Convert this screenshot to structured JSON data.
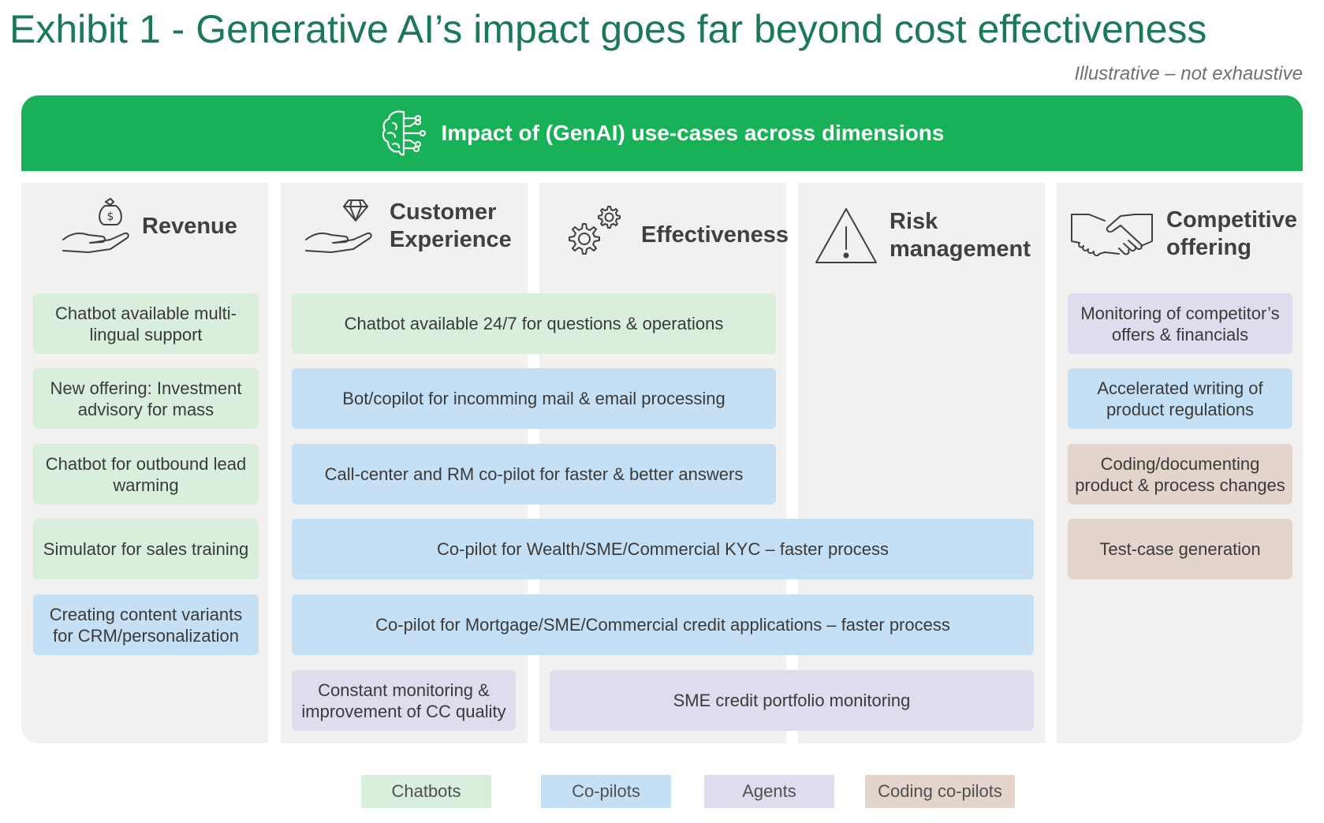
{
  "header": {
    "title": "Exhibit 1 - Generative AI’s impact goes far beyond cost effectiveness",
    "note": "Illustrative – not exhaustive",
    "banner": "Impact of (GenAI) use-cases across dimensions"
  },
  "columns": {
    "revenue": "Revenue",
    "customer_experience": "Customer Experience",
    "effectiveness": "Effectiveness",
    "risk_management": "Risk management",
    "competitive_offering": "Competitive offering"
  },
  "use_cases": {
    "revenue": [
      "Chatbot available multi-lingual support",
      "New offering: Investment advisory for mass",
      "Chatbot for outbound lead warming",
      "Simulator for sales training",
      "Creating content variants for CRM/personalization"
    ],
    "spanning": [
      "Chatbot available 24/7 for questions & operations",
      "Bot/copilot for incomming mail & email processing",
      "Call-center and RM co-pilot for faster & better answers",
      "Co-pilot for Wealth/SME/Commercial KYC – faster process",
      "Co-pilot for Mortgage/SME/Commercial credit applications – faster process",
      "Constant monitoring & improvement of CC quality",
      "SME credit portfolio monitoring"
    ],
    "competitive": [
      "Monitoring of competitor’s offers & financials",
      "Accelerated writing of product regulations",
      "Coding/documenting product & process changes",
      "Test-case generation"
    ]
  },
  "legend": {
    "chatbots": "Chatbots",
    "copilots": "Co-pilots",
    "agents": "Agents",
    "coding": "Coding co-pilots"
  },
  "colors": {
    "title": "#1b7a55",
    "banner": "#18b157",
    "chatbots": "#d9eedb",
    "copilots": "#c5dff4",
    "agents": "#e0dcee",
    "coding": "#e3d5cb"
  }
}
